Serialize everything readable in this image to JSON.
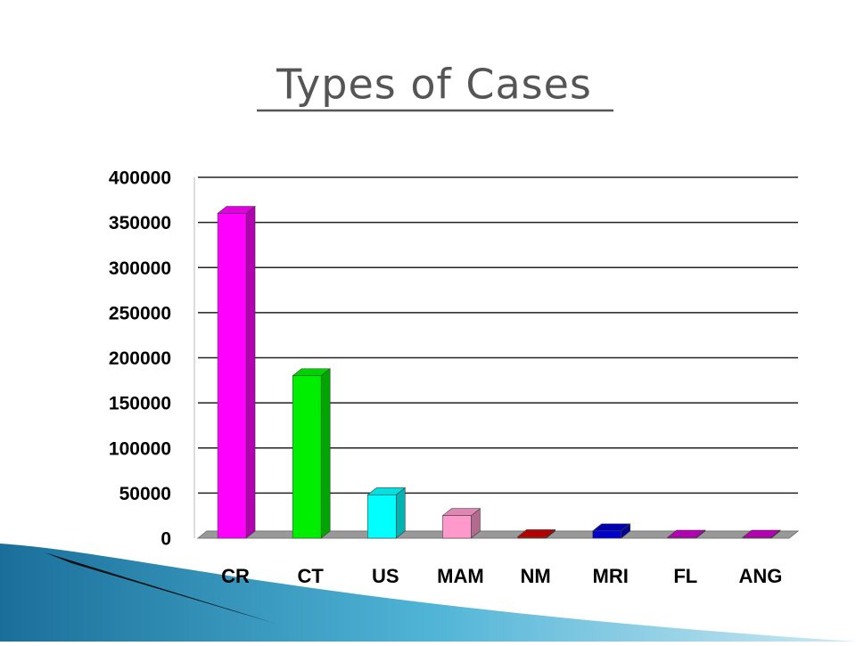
{
  "chart_data": {
    "type": "bar3d",
    "title": "Types of Cases",
    "categories": [
      "CR",
      "CT",
      "US",
      "MAM",
      "NM",
      "MRI",
      "FL",
      "ANG"
    ],
    "values": [
      360000,
      180000,
      48000,
      25000,
      1500,
      8000,
      1000,
      1000
    ],
    "colors": [
      "#ff00ff",
      "#00ee00",
      "#00ffff",
      "#ff99cc",
      "#cc0000",
      "#0000cc",
      "#cc00cc",
      "#cc00cc"
    ],
    "ylim": [
      0,
      400000
    ],
    "yticks": [
      0,
      50000,
      100000,
      150000,
      200000,
      250000,
      300000,
      350000,
      400000
    ],
    "grid": true
  }
}
